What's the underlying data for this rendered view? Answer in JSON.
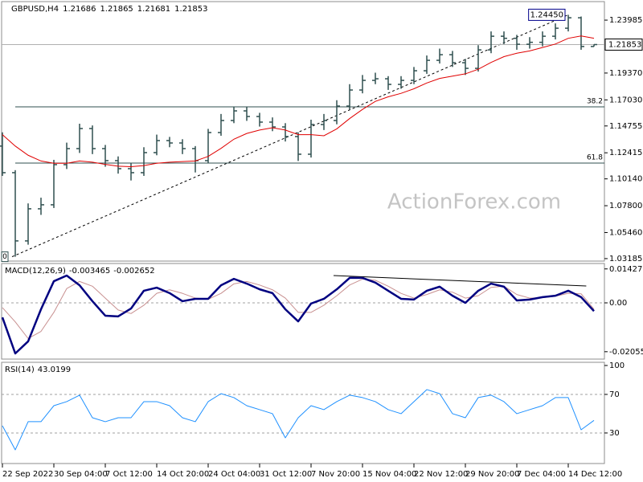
{
  "chart_data": [
    {
      "type": "ohlc",
      "title": "GBPUSD,H4",
      "watermark": "ActionForex.com",
      "color": "#2f4f4f",
      "categories": [
        "22 Sep 2022",
        null,
        null,
        null,
        "30 Sep 04:00",
        null,
        null,
        null,
        "7 Oct 12:00",
        null,
        null,
        null,
        "14 Oct 20:00",
        null,
        null,
        null,
        "24 Oct 04:00",
        null,
        null,
        null,
        "31 Oct 12:00",
        null,
        null,
        null,
        "7 Nov 20:00",
        null,
        null,
        null,
        "15 Nov 04:00",
        null,
        null,
        null,
        "22 Nov 12:00",
        null,
        null,
        null,
        "29 Nov 20:00",
        null,
        null,
        null,
        "7 Dec 04:00",
        null,
        null,
        null,
        "14 Dec 12:00",
        null,
        null
      ],
      "open": [
        1.13,
        1.1068,
        1.0473,
        1.0753,
        1.0788,
        1.1138,
        1.1278,
        1.1453,
        1.1278,
        1.1173,
        1.1103,
        1.1068,
        1.1243,
        1.1348,
        1.1327,
        1.1278,
        1.1173,
        1.1418,
        1.1523,
        1.1607,
        1.1558,
        1.1509,
        1.1467,
        1.1383,
        1.1229,
        1.1488,
        1.1523,
        1.1649,
        1.1789,
        1.1873,
        1.1887,
        1.1838,
        1.1873,
        1.1957,
        1.2048,
        1.2097,
        1.2027,
        1.1978,
        1.2139,
        1.2258,
        1.224,
        1.2188,
        1.2205,
        1.2258,
        1.2328,
        1.2419,
        1.21686
      ],
      "high": [
        1.142,
        1.109,
        1.08,
        1.085,
        1.118,
        1.133,
        1.1495,
        1.148,
        1.131,
        1.121,
        1.115,
        1.129,
        1.14,
        1.138,
        1.136,
        1.13,
        1.145,
        1.158,
        1.1645,
        1.164,
        1.159,
        1.155,
        1.15,
        1.142,
        1.153,
        1.158,
        1.17,
        1.184,
        1.192,
        1.194,
        1.191,
        1.191,
        1.199,
        1.209,
        1.215,
        1.213,
        1.206,
        1.218,
        1.23,
        1.23,
        1.227,
        1.225,
        1.23,
        1.237,
        1.2445,
        1.243,
        1.21865
      ],
      "low": [
        1.104,
        1.0335,
        1.044,
        1.07,
        1.076,
        1.11,
        1.124,
        1.123,
        1.112,
        1.106,
        1.1,
        1.104,
        1.122,
        1.129,
        1.123,
        1.107,
        1.115,
        1.139,
        1.15,
        1.152,
        1.147,
        1.143,
        1.134,
        1.117,
        1.12,
        1.144,
        1.149,
        1.162,
        1.176,
        1.184,
        1.179,
        1.18,
        1.184,
        1.193,
        1.202,
        1.199,
        1.192,
        1.195,
        1.211,
        1.219,
        1.214,
        1.215,
        1.217,
        1.223,
        1.23,
        1.214,
        1.21681
      ],
      "close": [
        1.1068,
        1.0473,
        1.0753,
        1.0788,
        1.1138,
        1.1278,
        1.1453,
        1.1278,
        1.1173,
        1.1103,
        1.1068,
        1.1243,
        1.1348,
        1.1327,
        1.1278,
        1.1173,
        1.1418,
        1.1523,
        1.1607,
        1.1558,
        1.1509,
        1.1467,
        1.1383,
        1.1229,
        1.1488,
        1.1523,
        1.1649,
        1.1789,
        1.1873,
        1.1887,
        1.1838,
        1.1873,
        1.1957,
        1.2048,
        1.2097,
        1.2027,
        1.1978,
        1.2139,
        1.2258,
        1.224,
        1.2188,
        1.2205,
        1.2258,
        1.2328,
        1.2419,
        1.21686,
        1.21853
      ],
      "ma": {
        "color": "#e00000",
        "values": [
          1.14,
          1.13,
          1.122,
          1.117,
          1.115,
          1.115,
          1.117,
          1.116,
          1.114,
          1.1125,
          1.112,
          1.113,
          1.115,
          1.116,
          1.1165,
          1.117,
          1.121,
          1.128,
          1.136,
          1.141,
          1.144,
          1.146,
          1.144,
          1.14,
          1.14,
          1.139,
          1.145,
          1.154,
          1.162,
          1.169,
          1.173,
          1.176,
          1.18,
          1.185,
          1.189,
          1.191,
          1.193,
          1.197,
          1.203,
          1.208,
          1.211,
          1.213,
          1.216,
          1.219,
          1.224,
          1.226,
          1.224
        ]
      },
      "high_marker": {
        "value": 1.2445,
        "label": "1.24450"
      },
      "fib": {
        "anchor_label": "0",
        "color": "#2f4f4f",
        "levels": [
          {
            "level": 38.2,
            "price": 1.1642
          },
          {
            "level": 61.8,
            "price": 1.1152
          }
        ]
      },
      "trendline": {
        "style": "dashed",
        "color": "#000000",
        "points": [
          [
            0.75,
            1.0335
          ],
          [
            44,
            1.2445
          ]
        ]
      },
      "ylim": [
        1.0297,
        1.256
      ],
      "yticks": [
        1.23985,
        {
          "value": 1.1937,
          "label": "1.19370"
        },
        {
          "value": 1.1703,
          "label": "1.17030"
        },
        1.14755,
        1.12415,
        {
          "value": 1.1014,
          "label": "1.10140"
        },
        {
          "value": 1.078,
          "label": "1.07800"
        },
        {
          "value": 1.0546,
          "label": "1.05460"
        },
        1.03185
      ]
    },
    {
      "type": "line",
      "title": "MACD(12,26,9)",
      "series": [
        {
          "color": "#000080",
          "values": [
            -0.0061,
            -0.0213,
            -0.0162,
            -0.0027,
            0.0091,
            0.0115,
            0.0074,
            0.0007,
            -0.0054,
            -0.0057,
            -0.0024,
            0.0051,
            0.0064,
            0.0041,
            0.0007,
            0.0017,
            0.0017,
            0.0074,
            0.0101,
            0.0081,
            0.0057,
            0.0041,
            -0.0027,
            -0.0078,
            -0.0003,
            0.0017,
            0.0057,
            0.0105,
            0.0105,
            0.0085,
            0.0051,
            0.0017,
            0.0014,
            0.0051,
            0.0068,
            0.003,
            0.0,
            0.0051,
            0.0081,
            0.0068,
            0.001,
            0.0014,
            0.0024,
            0.003,
            0.0051,
            0.0024,
            -0.003465
          ]
        },
        {
          "color": "#c89090",
          "values": [
            -0.002,
            -0.008,
            -0.015,
            -0.012,
            -0.004,
            0.006,
            0.009,
            0.007,
            0.002,
            -0.003,
            -0.0045,
            -0.001,
            0.004,
            0.0055,
            0.004,
            0.002,
            0.0015,
            0.004,
            0.008,
            0.009,
            0.0075,
            0.0055,
            0.002,
            -0.004,
            -0.004,
            -0.001,
            0.003,
            0.0075,
            0.01,
            0.0095,
            0.007,
            0.004,
            0.002,
            0.0035,
            0.0055,
            0.0045,
            0.002,
            0.003,
            0.0065,
            0.007,
            0.0035,
            0.002,
            0.0022,
            0.0028,
            0.004,
            0.0038,
            -0.002652
          ]
        }
      ],
      "levels": [
        0
      ],
      "trendline": {
        "style": "solid",
        "color": "#000000",
        "points": [
          [
            25.75,
            0.0115
          ],
          [
            45.4,
            0.0071
          ]
        ]
      },
      "ylim": [
        -0.02366,
        0.01656
      ],
      "yticks": [
        0.014278,
        {
          "value": 0,
          "label": "0.00"
        },
        -0.020556
      ]
    },
    {
      "type": "line",
      "title": "RSI(14)",
      "series": [
        {
          "color": "#1e90ff",
          "values": [
            37.5,
            12.5,
            41.7,
            41.7,
            58.3,
            62.5,
            69.2,
            45.8,
            41.7,
            45.8,
            45.8,
            62.5,
            62.5,
            58.3,
            45.8,
            41.7,
            62.5,
            70.8,
            66.7,
            58.3,
            54.2,
            50.0,
            25.0,
            45.8,
            58.3,
            54.2,
            62.5,
            69.2,
            66.7,
            62.5,
            54.2,
            50.0,
            62.5,
            75.0,
            70.8,
            50.0,
            45.8,
            66.7,
            69.2,
            62.5,
            50.0,
            54.2,
            58.3,
            66.7,
            66.7,
            33.3,
            43.0199
          ]
        }
      ],
      "levels": [
        70,
        30
      ],
      "ylim": [
        -1.7,
        103.3
      ],
      "yticks": [
        100,
        70,
        30
      ]
    }
  ]
}
